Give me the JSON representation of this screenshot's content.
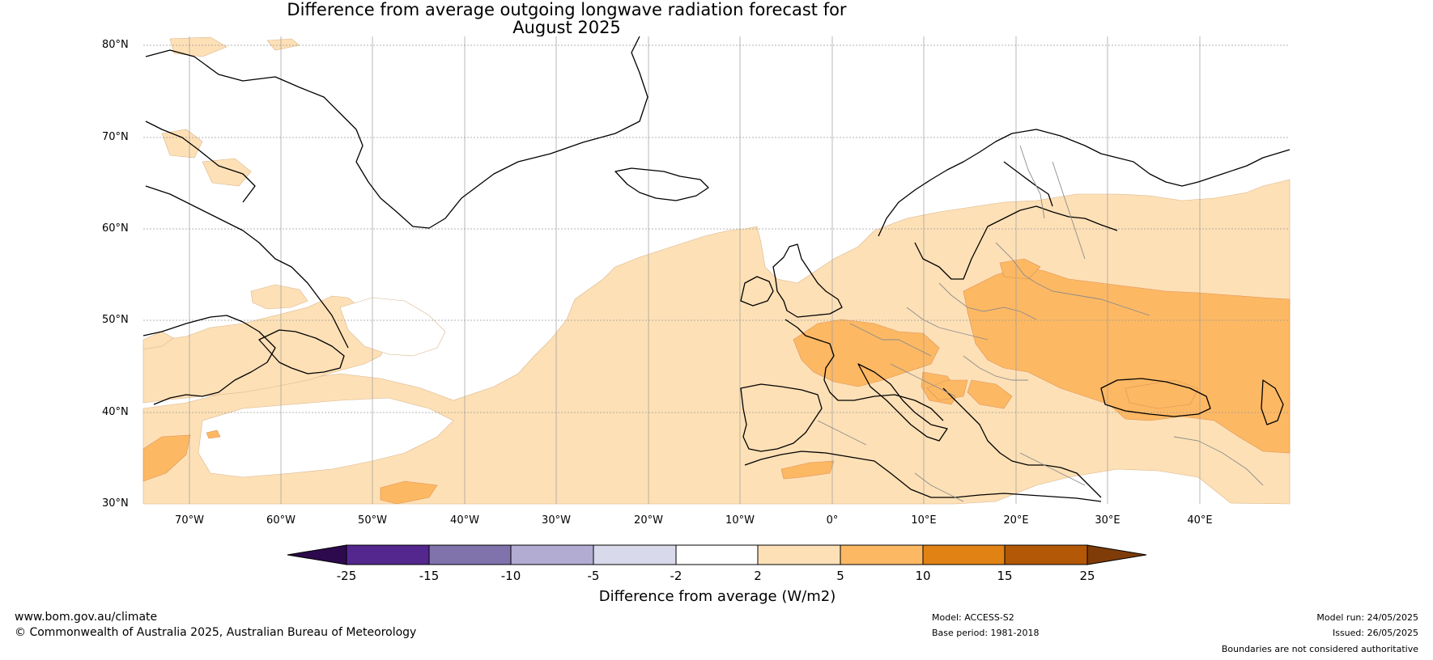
{
  "title_line1": "Difference from average outgoing longwave radiation forecast for",
  "title_line2": "August 2025",
  "lat_labels": [
    "80°N",
    "70°N",
    "60°N",
    "50°N",
    "40°N",
    "30°N"
  ],
  "lon_labels": [
    "70°W",
    "60°W",
    "50°W",
    "40°W",
    "30°W",
    "20°W",
    "10°W",
    "0°",
    "10°E",
    "20°E",
    "30°E",
    "40°E"
  ],
  "colorbar": {
    "ticks": [
      "-25",
      "-15",
      "-10",
      "-5",
      "-2",
      "2",
      "5",
      "10",
      "15",
      "25"
    ],
    "label": "Difference from average (W/m2)",
    "colors": [
      "#2d0a4e",
      "#54278f",
      "#8073ac",
      "#b2abd2",
      "#d8daeb",
      "#ffffff",
      "#fee0b6",
      "#fdb863",
      "#e08214",
      "#b35806",
      "#7f3b08"
    ]
  },
  "footer": {
    "website": "www.bom.gov.au/climate",
    "copyright": "© Commonwealth of Australia 2025, Australian Bureau of Meteorology",
    "model": "Model: ACCESS-S2",
    "base_period": "Base period: 1981-2018",
    "model_run": "Model run: 24/05/2025",
    "issued": "Issued: 26/05/2025",
    "disclaimer": "Boundaries are not considered authoritative"
  }
}
